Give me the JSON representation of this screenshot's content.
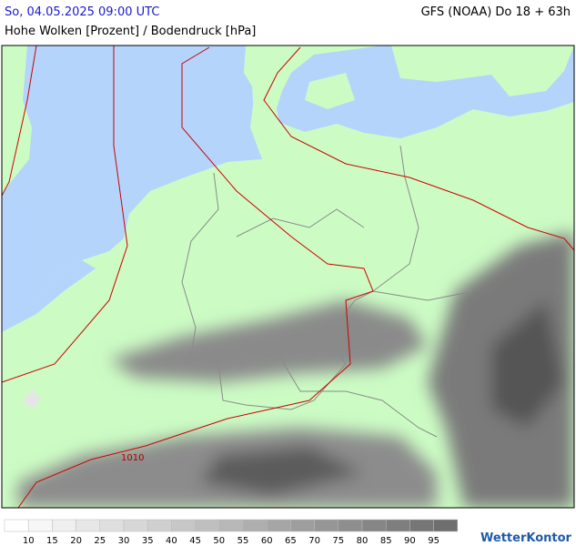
{
  "header": {
    "date": "So, 04.05.2025 09:00 UTC",
    "model": "GFS (NOAA) Do 18 + 63h",
    "subtitle": "Hohe Wolken [Prozent] / Bodendruck [hPa]"
  },
  "map": {
    "isobar_label": "1010"
  },
  "legend": {
    "labels": [
      10,
      15,
      20,
      25,
      30,
      35,
      40,
      45,
      50,
      55,
      60,
      65,
      70,
      75,
      80,
      85,
      90,
      95
    ]
  },
  "logo": {
    "text": "WetterKontor"
  }
}
